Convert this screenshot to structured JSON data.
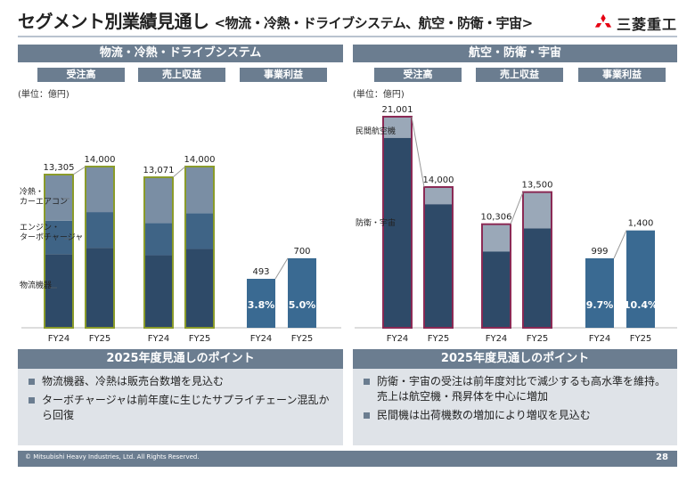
{
  "header": {
    "title": "セグメント別業績見通し",
    "subtitle": "<物流・冷熱・ドライブシステム、航空・防衛・宇宙>",
    "logo_text": "三菱重工"
  },
  "left": {
    "section_title": "物流・冷熱・ドライブシステム",
    "column_heads": [
      "受注高",
      "売上収益",
      "事業利益"
    ],
    "unit": "(単位：億円)",
    "segment_labels": [
      "冷熱・\nカーエアコン",
      "エンジン・\nターボチャージャ",
      "物流機器"
    ],
    "points_title": "2025年度見通しのポイント",
    "points": [
      "物流機器、冷熱は販売台数増を見込む",
      "ターボチャージャは前年度に生じたサプライチェーン混乱から回復"
    ]
  },
  "right": {
    "section_title": "航空・防衛・宇宙",
    "column_heads": [
      "受注高",
      "売上収益",
      "事業利益"
    ],
    "unit": "(単位：億円)",
    "segment_labels": [
      "民間航空機",
      "防衛・宇宙"
    ],
    "points_title": "2025年度見通しのポイント",
    "points": [
      "防衛・宇宙の受注は前年度対比で減少するも高水準を維持。売上は航空機・飛昇体を中心に増加",
      "民間機は出荷機数の増加により増収を見込む"
    ]
  },
  "colors": {
    "dark": "#2e4a68",
    "mid": "#3f6486",
    "light": "#7a8ea4",
    "lighter": "#9aa8b8",
    "profit": "#3a6a92",
    "frame_left": "#8a9b2a",
    "frame_right": "#8b2a55",
    "header": "#6b7d90"
  },
  "chart_data": [
    {
      "type": "bar",
      "title": "物流・冷熱・ドライブシステム",
      "categories": [
        "FY24",
        "FY25",
        "FY24",
        "FY25",
        "FY24",
        "FY25"
      ],
      "groups": [
        "受注高",
        "売上収益",
        "事業利益"
      ],
      "totals": [
        13305,
        14000,
        13071,
        14000,
        493,
        700
      ],
      "total_labels": [
        "13,305",
        "14,000",
        "13,071",
        "14,000",
        "493",
        "700"
      ],
      "series": [
        {
          "name": "物流機器",
          "values": [
            6400,
            6950,
            6300,
            6850,
            null,
            null
          ]
        },
        {
          "name": "エンジン・ターボチャージャ",
          "values": [
            2900,
            3100,
            2800,
            3100,
            null,
            null
          ]
        },
        {
          "name": "冷熱・カーエアコン",
          "values": [
            4005,
            3950,
            3971,
            4050,
            null,
            null
          ]
        },
        {
          "name": "事業利益",
          "values": [
            null,
            null,
            null,
            null,
            493,
            700
          ]
        }
      ],
      "profit_margin_labels": [
        "3.8%",
        "5.0%"
      ],
      "xlabel": "",
      "ylabel": "億円"
    },
    {
      "type": "bar",
      "title": "航空・防衛・宇宙",
      "categories": [
        "FY24",
        "FY25",
        "FY24",
        "FY25",
        "FY24",
        "FY25"
      ],
      "groups": [
        "受注高",
        "売上収益",
        "事業利益"
      ],
      "totals": [
        21001,
        14000,
        10306,
        13500,
        999,
        1400
      ],
      "total_labels": [
        "21,001",
        "14,000",
        "10,306",
        "13,500",
        "999",
        "1,400"
      ],
      "series": [
        {
          "name": "防衛・宇宙",
          "values": [
            18900,
            12300,
            7600,
            9900,
            null,
            null
          ]
        },
        {
          "name": "民間航空機",
          "values": [
            2101,
            1700,
            2706,
            3600,
            null,
            null
          ]
        },
        {
          "name": "事業利益",
          "values": [
            null,
            null,
            null,
            null,
            999,
            1400
          ]
        }
      ],
      "profit_margin_labels": [
        "9.7%",
        "10.4%"
      ],
      "xlabel": "",
      "ylabel": "億円"
    }
  ],
  "footer": {
    "copyright": "© Mitsubishi Heavy Industries, Ltd. All Rights Reserved.",
    "page": "28"
  }
}
